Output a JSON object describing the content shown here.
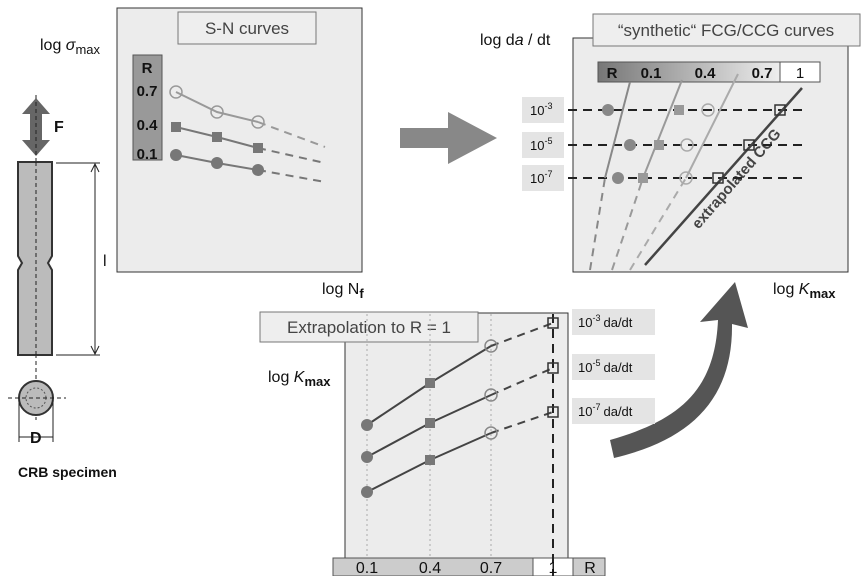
{
  "specimen": {
    "force": "F",
    "length": "l",
    "diameter": "D",
    "caption": "CRB specimen"
  },
  "sn_panel": {
    "title": "S-N curves",
    "y_label": {
      "text": "log ",
      "symbol": "σ",
      "sub": "max"
    },
    "x_label": {
      "text": "log N",
      "sub": "f"
    },
    "legend": {
      "title": "R",
      "items": [
        "0.7",
        "0.4",
        "0.1"
      ]
    }
  },
  "fcg_panel": {
    "title": "“synthetic“ FCG/CCG curves",
    "y_label": {
      "pre": "log d",
      "italic": "a",
      "post": " / dt"
    },
    "x_label": {
      "text": "log ",
      "symbol": "K",
      "sub": "max"
    },
    "legend": {
      "title": "R",
      "items": [
        "0.1",
        "0.4",
        "0.7",
        "1"
      ]
    },
    "levels": [
      {
        "base": "10",
        "exp": "-3"
      },
      {
        "base": "10",
        "exp": "-5"
      },
      {
        "base": "10",
        "exp": "-7"
      }
    ],
    "curve_label": "extrapolated CCG"
  },
  "extrapolation_panel": {
    "title": "Extrapolation to R = 1",
    "y_label": {
      "text": "log ",
      "symbol": "K",
      "sub": "max"
    },
    "levels": [
      {
        "base": "10",
        "exp": "-3",
        "unit": "da/dt"
      },
      {
        "base": "10",
        "exp": "-5",
        "unit": "da/dt"
      },
      {
        "base": "10",
        "exp": "-7",
        "unit": "da/dt"
      }
    ],
    "x_axis": {
      "ticks": [
        "0.1",
        "0.4",
        "0.7",
        "1"
      ],
      "label": "R"
    }
  }
}
